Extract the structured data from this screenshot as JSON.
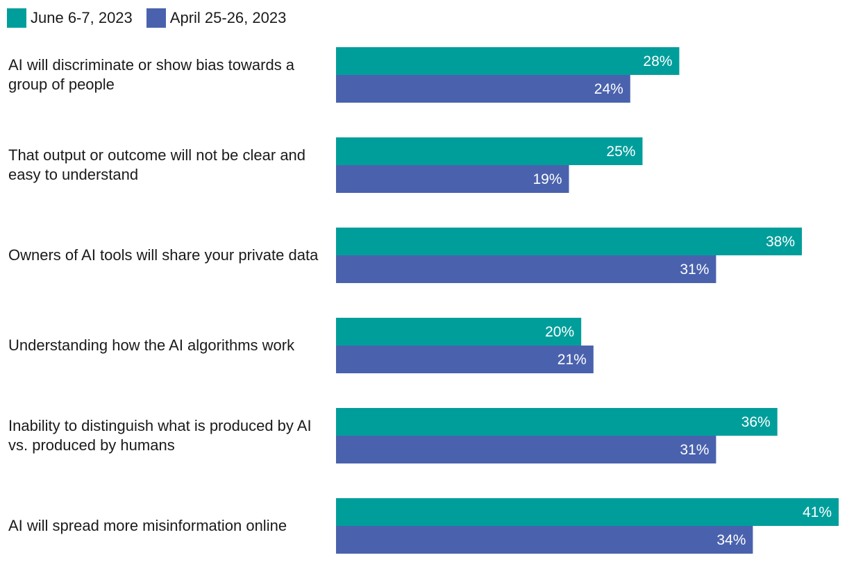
{
  "chart_data": {
    "type": "bar",
    "orientation": "horizontal",
    "categories": [
      "AI will discriminate or show bias towards a group of people",
      "That output or outcome will not be clear and easy to understand",
      "Owners of AI tools will share your private data",
      "Understanding how the AI algorithms work",
      "Inability to distinguish what is produced by AI vs. produced by humans",
      "AI will spread more misinformation online"
    ],
    "series": [
      {
        "name": "June 6-7, 2023",
        "color": "#009e9b",
        "values": [
          28,
          25,
          38,
          20,
          36,
          41
        ],
        "labels": [
          "28%",
          "25%",
          "38%",
          "20%",
          "36%",
          "41%"
        ]
      },
      {
        "name": "April 25-26, 2023",
        "color": "#4a62ad",
        "values": [
          24,
          19,
          31,
          21,
          31,
          34
        ],
        "labels": [
          "24%",
          "19%",
          "31%",
          "21%",
          "31%",
          "34%"
        ]
      }
    ],
    "title": "",
    "xlabel": "",
    "ylabel": "",
    "xlim": [
      0,
      41
    ],
    "grid": false,
    "legend_position": "top-left"
  },
  "legend": {
    "items": [
      {
        "label": "June 6-7, 2023",
        "color": "#009e9b"
      },
      {
        "label": "April 25-26, 2023",
        "color": "#4a62ad"
      }
    ]
  }
}
